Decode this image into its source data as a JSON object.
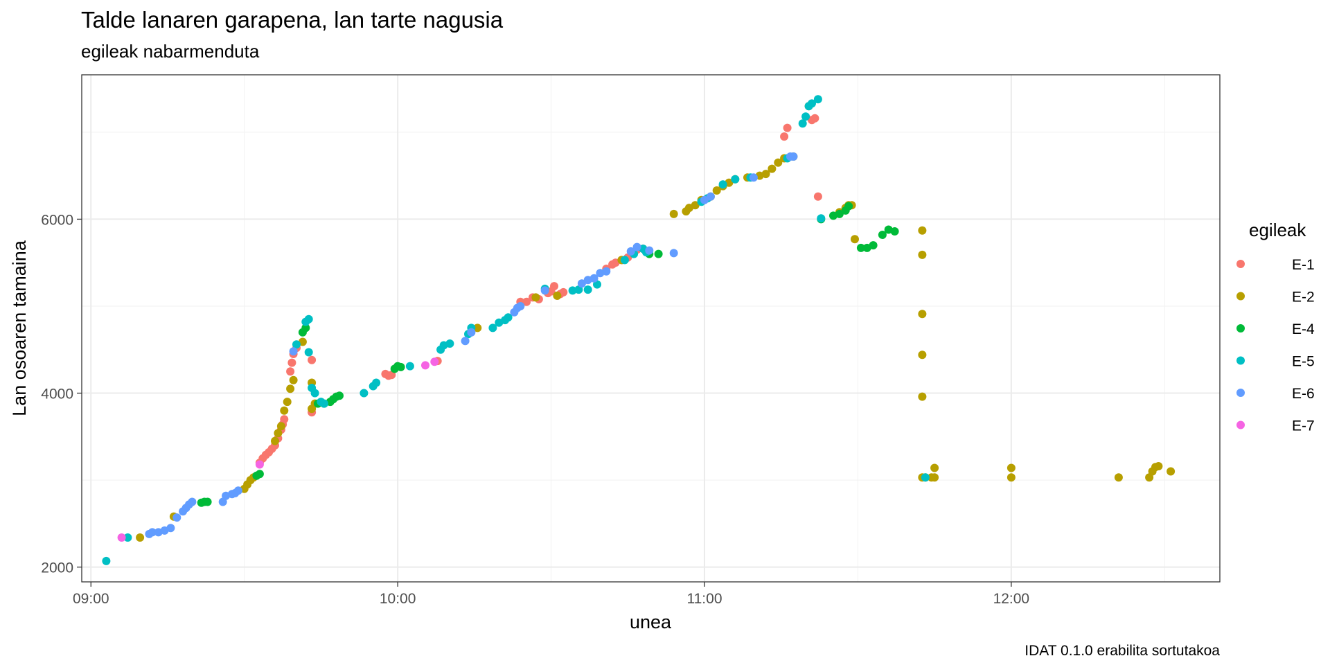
{
  "chart_data": {
    "type": "scatter",
    "title": "Talde lanaren garapena, lan tarte nagusia",
    "subtitle": "egileak nabarmenduta",
    "xlabel": "unea",
    "ylabel": "Lan osoaren tamaina",
    "caption": "IDAT 0.1.0 erabilita sortutakoa",
    "x_unit": "time of day (hours)",
    "xlim": [
      8.97,
      12.68
    ],
    "ylim": [
      1830,
      7660
    ],
    "x_ticks": [
      {
        "value": 9.0,
        "label": "09:00"
      },
      {
        "value": 10.0,
        "label": "10:00"
      },
      {
        "value": 11.0,
        "label": "11:00"
      },
      {
        "value": 12.0,
        "label": "12:00"
      }
    ],
    "y_ticks": [
      {
        "value": 2000,
        "label": "2000"
      },
      {
        "value": 4000,
        "label": "4000"
      },
      {
        "value": 6000,
        "label": "6000"
      }
    ],
    "grid": true,
    "legend": {
      "title": "egileak",
      "position": "right"
    },
    "series": [
      {
        "name": "E-1",
        "color": "#F8766D",
        "points": [
          [
            9.55,
            3200
          ],
          [
            9.56,
            3250
          ],
          [
            9.57,
            3290
          ],
          [
            9.58,
            3320
          ],
          [
            9.59,
            3360
          ],
          [
            9.6,
            3400
          ],
          [
            9.61,
            3480
          ],
          [
            9.62,
            3580
          ],
          [
            9.625,
            3640
          ],
          [
            9.63,
            3700
          ],
          [
            9.65,
            4250
          ],
          [
            9.655,
            4350
          ],
          [
            9.66,
            4450
          ],
          [
            9.67,
            4520
          ],
          [
            9.72,
            4380
          ],
          [
            9.72,
            3780
          ],
          [
            9.96,
            4220
          ],
          [
            9.97,
            4200
          ],
          [
            9.98,
            4210
          ],
          [
            10.13,
            4370
          ],
          [
            10.4,
            5050
          ],
          [
            10.42,
            5050
          ],
          [
            10.44,
            5100
          ],
          [
            10.46,
            5080
          ],
          [
            10.49,
            5150
          ],
          [
            10.5,
            5170
          ],
          [
            10.51,
            5230
          ],
          [
            10.52,
            5120
          ],
          [
            10.53,
            5140
          ],
          [
            10.54,
            5160
          ],
          [
            10.68,
            5430
          ],
          [
            10.7,
            5480
          ],
          [
            10.71,
            5500
          ],
          [
            10.73,
            5530
          ],
          [
            10.75,
            5560
          ],
          [
            10.77,
            5620
          ],
          [
            10.78,
            5650
          ],
          [
            10.8,
            5660
          ],
          [
            11.26,
            6950
          ],
          [
            11.27,
            7050
          ],
          [
            11.35,
            7140
          ],
          [
            11.36,
            7160
          ],
          [
            11.37,
            6260
          ]
        ]
      },
      {
        "name": "E-2",
        "color": "#B79F00",
        "points": [
          [
            9.16,
            2340
          ],
          [
            9.27,
            2580
          ],
          [
            9.5,
            2900
          ],
          [
            9.51,
            2950
          ],
          [
            9.52,
            3000
          ],
          [
            9.53,
            3030
          ],
          [
            9.6,
            3450
          ],
          [
            9.61,
            3540
          ],
          [
            9.62,
            3620
          ],
          [
            9.63,
            3800
          ],
          [
            9.64,
            3900
          ],
          [
            9.65,
            4050
          ],
          [
            9.66,
            4150
          ],
          [
            9.69,
            4590
          ],
          [
            9.72,
            4120
          ],
          [
            9.72,
            3820
          ],
          [
            9.73,
            3880
          ],
          [
            10.26,
            4750
          ],
          [
            10.45,
            5100
          ],
          [
            10.52,
            5120
          ],
          [
            10.73,
            5530
          ],
          [
            10.9,
            6060
          ],
          [
            10.94,
            6090
          ],
          [
            10.95,
            6130
          ],
          [
            10.97,
            6160
          ],
          [
            10.99,
            6220
          ],
          [
            11.02,
            6260
          ],
          [
            11.04,
            6330
          ],
          [
            11.06,
            6380
          ],
          [
            11.08,
            6420
          ],
          [
            11.1,
            6460
          ],
          [
            11.14,
            6480
          ],
          [
            11.18,
            6500
          ],
          [
            11.2,
            6520
          ],
          [
            11.22,
            6580
          ],
          [
            11.24,
            6650
          ],
          [
            11.26,
            6700
          ],
          [
            11.29,
            6720
          ],
          [
            11.34,
            7300
          ],
          [
            11.44,
            6080
          ],
          [
            11.46,
            6130
          ],
          [
            11.47,
            6160
          ],
          [
            11.48,
            6160
          ],
          [
            11.49,
            5770
          ],
          [
            11.71,
            5870
          ],
          [
            11.71,
            5590
          ],
          [
            11.71,
            4910
          ],
          [
            11.71,
            4440
          ],
          [
            11.71,
            3960
          ],
          [
            11.71,
            3030
          ],
          [
            11.72,
            3030
          ],
          [
            11.74,
            3030
          ],
          [
            11.75,
            3140
          ],
          [
            11.75,
            3030
          ],
          [
            12.0,
            3140
          ],
          [
            12.0,
            3030
          ],
          [
            12.35,
            3030
          ],
          [
            12.45,
            3030
          ],
          [
            12.46,
            3100
          ],
          [
            12.47,
            3150
          ],
          [
            12.48,
            3160
          ],
          [
            12.52,
            3100
          ]
        ]
      },
      {
        "name": "E-4",
        "color": "#00BA38",
        "points": [
          [
            9.36,
            2740
          ],
          [
            9.37,
            2750
          ],
          [
            9.38,
            2750
          ],
          [
            9.54,
            3050
          ],
          [
            9.55,
            3070
          ],
          [
            9.69,
            4700
          ],
          [
            9.7,
            4750
          ],
          [
            9.74,
            3880
          ],
          [
            9.76,
            3880
          ],
          [
            9.78,
            3900
          ],
          [
            9.79,
            3930
          ],
          [
            9.8,
            3960
          ],
          [
            9.81,
            3970
          ],
          [
            9.99,
            4280
          ],
          [
            10.0,
            4310
          ],
          [
            10.01,
            4300
          ],
          [
            10.82,
            5600
          ],
          [
            10.85,
            5600
          ],
          [
            11.38,
            6000
          ],
          [
            11.42,
            6040
          ],
          [
            11.44,
            6060
          ],
          [
            11.46,
            6100
          ],
          [
            11.47,
            6150
          ],
          [
            11.51,
            5670
          ],
          [
            11.53,
            5670
          ],
          [
            11.55,
            5700
          ],
          [
            11.58,
            5820
          ],
          [
            11.6,
            5880
          ],
          [
            11.62,
            5860
          ]
        ]
      },
      {
        "name": "E-5",
        "color": "#00BFC4",
        "points": [
          [
            9.05,
            2070
          ],
          [
            9.12,
            2340
          ],
          [
            9.67,
            4560
          ],
          [
            9.7,
            4820
          ],
          [
            9.71,
            4850
          ],
          [
            9.71,
            4470
          ],
          [
            9.72,
            4060
          ],
          [
            9.73,
            4000
          ],
          [
            9.75,
            3900
          ],
          [
            9.76,
            3880
          ],
          [
            9.89,
            4000
          ],
          [
            9.92,
            4080
          ],
          [
            9.93,
            4120
          ],
          [
            10.04,
            4310
          ],
          [
            10.14,
            4500
          ],
          [
            10.15,
            4550
          ],
          [
            10.17,
            4570
          ],
          [
            10.23,
            4680
          ],
          [
            10.24,
            4750
          ],
          [
            10.31,
            4750
          ],
          [
            10.33,
            4810
          ],
          [
            10.35,
            4840
          ],
          [
            10.36,
            4870
          ],
          [
            10.48,
            5200
          ],
          [
            10.57,
            5180
          ],
          [
            10.59,
            5190
          ],
          [
            10.62,
            5190
          ],
          [
            10.65,
            5250
          ],
          [
            10.74,
            5530
          ],
          [
            10.77,
            5600
          ],
          [
            10.8,
            5660
          ],
          [
            10.81,
            5620
          ],
          [
            10.99,
            6200
          ],
          [
            11.01,
            6240
          ],
          [
            11.06,
            6400
          ],
          [
            11.1,
            6460
          ],
          [
            11.15,
            6480
          ],
          [
            11.27,
            6700
          ],
          [
            11.32,
            7100
          ],
          [
            11.33,
            7180
          ],
          [
            11.34,
            7300
          ],
          [
            11.35,
            7330
          ],
          [
            11.37,
            7380
          ],
          [
            11.38,
            6010
          ],
          [
            11.72,
            3030
          ]
        ]
      },
      {
        "name": "E-6",
        "color": "#619CFF",
        "points": [
          [
            9.19,
            2380
          ],
          [
            9.2,
            2400
          ],
          [
            9.22,
            2400
          ],
          [
            9.24,
            2420
          ],
          [
            9.26,
            2450
          ],
          [
            9.28,
            2570
          ],
          [
            9.3,
            2640
          ],
          [
            9.31,
            2680
          ],
          [
            9.32,
            2720
          ],
          [
            9.33,
            2750
          ],
          [
            9.43,
            2750
          ],
          [
            9.44,
            2820
          ],
          [
            9.46,
            2840
          ],
          [
            9.47,
            2850
          ],
          [
            9.48,
            2880
          ],
          [
            9.66,
            4480
          ],
          [
            10.22,
            4600
          ],
          [
            10.24,
            4700
          ],
          [
            10.38,
            4930
          ],
          [
            10.39,
            4980
          ],
          [
            10.4,
            5000
          ],
          [
            10.48,
            5180
          ],
          [
            10.6,
            5260
          ],
          [
            10.62,
            5300
          ],
          [
            10.64,
            5320
          ],
          [
            10.66,
            5380
          ],
          [
            10.68,
            5400
          ],
          [
            10.76,
            5630
          ],
          [
            10.78,
            5680
          ],
          [
            10.82,
            5640
          ],
          [
            10.9,
            5610
          ],
          [
            11.0,
            6220
          ],
          [
            11.02,
            6260
          ],
          [
            11.16,
            6480
          ],
          [
            11.28,
            6720
          ],
          [
            11.29,
            6720
          ]
        ]
      },
      {
        "name": "E-7",
        "color": "#F564E3",
        "points": [
          [
            9.1,
            2340
          ],
          [
            9.55,
            3180
          ],
          [
            10.09,
            4320
          ],
          [
            10.12,
            4360
          ]
        ]
      }
    ]
  }
}
